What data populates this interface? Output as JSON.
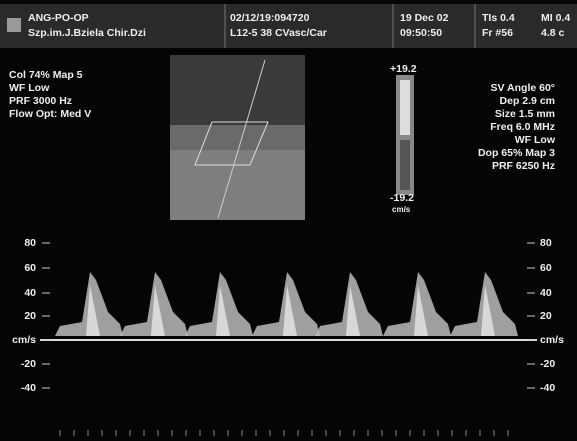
{
  "header": {
    "logo_lines": [
      "ANG-PO-OP",
      "Szp.im.J.Bziela Chir.Dzi"
    ],
    "datetime_lines": [
      "02/12/19:094720",
      "L12-5 38 CVasc/Car"
    ],
    "date_lines": [
      "19 Dec 02",
      "09:50:50"
    ],
    "index_lines": [
      "TIs 0.4",
      "Fr #56"
    ],
    "mi_lines": [
      "MI 0.4",
      "4.8 c"
    ]
  },
  "left_settings": [
    "Col 74%  Map 5",
    "WF Low",
    "PRF 3000  Hz",
    "Flow Opt: Med V"
  ],
  "right_settings": [
    "SV Angle 60°",
    "Dep 2.9  cm",
    "Size 1.5  mm",
    "Freq 6.0  MHz",
    "WF Low",
    "Dop 65%  Map 3",
    "PRF 6250  Hz"
  ],
  "color_bar": {
    "top": "+19.2",
    "bottom": "-19.2",
    "unit": "cm/s"
  },
  "spectrum_scale_left": [
    "80",
    "60",
    "40",
    "20",
    "cm/s",
    "-20",
    "-40"
  ],
  "spectrum_scale_right": [
    "80",
    "60",
    "40",
    "20",
    "cm/s",
    "-20",
    "-40"
  ]
}
